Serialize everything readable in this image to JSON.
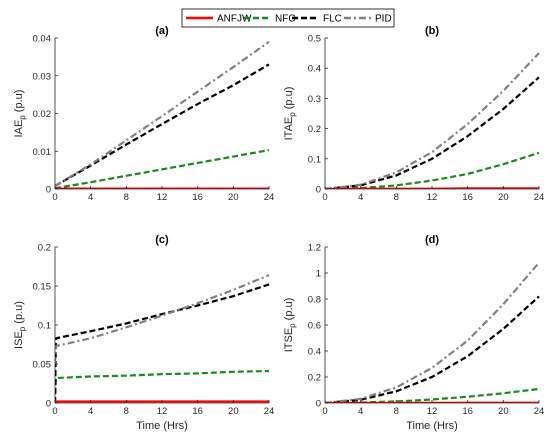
{
  "legend": {
    "items": [
      {
        "name": "ANFJW",
        "color": "#ff0000",
        "dash": "solid"
      },
      {
        "name": "NFC",
        "color": "#1a8a1a",
        "dash": "dashed"
      },
      {
        "name": "FLC",
        "color": "#000000",
        "dash": "dashed"
      },
      {
        "name": "PID",
        "color": "#808080",
        "dash": "dashdot"
      }
    ]
  },
  "chart_data": [
    {
      "type": "line",
      "title": "(a)",
      "xlabel": "",
      "ylabel": "IAE",
      "ylabel_sub": "p",
      "ylabel_suffix": " (p.u)",
      "xlim": [
        0,
        24
      ],
      "ylim": [
        0,
        0.04
      ],
      "xticks": [
        "0",
        "4",
        "8",
        "12",
        "16",
        "20",
        "24"
      ],
      "yticks": [
        {
          "v": 0,
          "t": "0"
        },
        {
          "v": 0.01,
          "t": "0.01"
        },
        {
          "v": 0.02,
          "t": "0.02"
        },
        {
          "v": 0.03,
          "t": "0.03"
        },
        {
          "v": 0.04,
          "t": "0.04"
        }
      ],
      "series": [
        {
          "name": "ANFJW",
          "x": [
            0,
            4,
            8,
            12,
            16,
            20,
            24
          ],
          "y": [
            0.0001,
            0.0001,
            0.0001,
            0.0001,
            0.0001,
            0.0001,
            0.0001
          ]
        },
        {
          "name": "NFC",
          "x": [
            0,
            4,
            8,
            12,
            16,
            20,
            24
          ],
          "y": [
            0.0002,
            0.0018,
            0.0035,
            0.0052,
            0.0069,
            0.0086,
            0.0103
          ]
        },
        {
          "name": "FLC",
          "x": [
            0,
            4,
            8,
            12,
            16,
            20,
            24
          ],
          "y": [
            0.0008,
            0.0062,
            0.0118,
            0.0172,
            0.0225,
            0.0275,
            0.033
          ]
        },
        {
          "name": "PID",
          "x": [
            0,
            4,
            8,
            12,
            16,
            20,
            24
          ],
          "y": [
            0.0008,
            0.0065,
            0.0129,
            0.0193,
            0.0258,
            0.0323,
            0.039
          ]
        }
      ]
    },
    {
      "type": "line",
      "title": "(b)",
      "xlabel": "",
      "ylabel": "ITAE",
      "ylabel_sub": "p",
      "ylabel_suffix": " (p.u)",
      "xlim": [
        0,
        24
      ],
      "ylim": [
        0,
        0.5
      ],
      "xticks": [
        "0",
        "4",
        "8",
        "12",
        "16",
        "20",
        "24"
      ],
      "yticks": [
        {
          "v": 0,
          "t": "0"
        },
        {
          "v": 0.1,
          "t": "0.1"
        },
        {
          "v": 0.2,
          "t": "0.2"
        },
        {
          "v": 0.3,
          "t": "0.3"
        },
        {
          "v": 0.4,
          "t": "0.4"
        },
        {
          "v": 0.5,
          "t": "0.5"
        }
      ],
      "series": [
        {
          "name": "ANFJW",
          "x": [
            0,
            4,
            8,
            12,
            16,
            20,
            24
          ],
          "y": [
            0,
            0.001,
            0.001,
            0.001,
            0.002,
            0.002,
            0.002
          ]
        },
        {
          "name": "NFC",
          "x": [
            0,
            4,
            8,
            12,
            16,
            20,
            24
          ],
          "y": [
            0,
            0.003,
            0.012,
            0.028,
            0.05,
            0.082,
            0.12
          ]
        },
        {
          "name": "FLC",
          "x": [
            0,
            4,
            8,
            12,
            16,
            20,
            24
          ],
          "y": [
            0,
            0.012,
            0.045,
            0.1,
            0.175,
            0.265,
            0.37
          ]
        },
        {
          "name": "PID",
          "x": [
            0,
            4,
            8,
            12,
            16,
            20,
            24
          ],
          "y": [
            0,
            0.014,
            0.055,
            0.122,
            0.215,
            0.325,
            0.45
          ]
        }
      ]
    },
    {
      "type": "line",
      "title": "(c)",
      "xlabel": "Time (Hrs)",
      "ylabel": "ISE",
      "ylabel_sub": "p",
      "ylabel_suffix": " (p.u)",
      "xlim": [
        0,
        24
      ],
      "ylim": [
        0,
        0.2
      ],
      "xticks": [
        "0",
        "4",
        "8",
        "12",
        "16",
        "20",
        "24"
      ],
      "yticks": [
        {
          "v": 0,
          "t": "0"
        },
        {
          "v": 0.05,
          "t": "0.05"
        },
        {
          "v": 0.1,
          "t": "0.1"
        },
        {
          "v": 0.15,
          "t": "0.15"
        },
        {
          "v": 0.2,
          "t": "0.2"
        }
      ],
      "series": [
        {
          "name": "ANFJW",
          "x": [
            0,
            4,
            8,
            12,
            16,
            20,
            24
          ],
          "y": [
            0.002,
            0.002,
            0.002,
            0.002,
            0.002,
            0.002,
            0.002
          ]
        },
        {
          "name": "NFC",
          "x": [
            0,
            0.1,
            4,
            8,
            12,
            16,
            20,
            24
          ],
          "y": [
            0,
            0.032,
            0.034,
            0.035,
            0.037,
            0.038,
            0.04,
            0.041
          ]
        },
        {
          "name": "FLC",
          "x": [
            0,
            0.1,
            4,
            8,
            12,
            16,
            20,
            24
          ],
          "y": [
            0,
            0.083,
            0.092,
            0.102,
            0.114,
            0.125,
            0.137,
            0.152
          ]
        },
        {
          "name": "PID",
          "x": [
            0,
            0.1,
            4,
            8,
            12,
            16,
            20,
            24
          ],
          "y": [
            0.05,
            0.073,
            0.083,
            0.097,
            0.112,
            0.128,
            0.145,
            0.164
          ]
        }
      ]
    },
    {
      "type": "line",
      "title": "(d)",
      "xlabel": "Time (Hrs)",
      "ylabel": "ITSE",
      "ylabel_sub": "p",
      "ylabel_suffix": " (p.u)",
      "xlim": [
        0,
        24
      ],
      "ylim": [
        0,
        1.2
      ],
      "xticks": [
        "0",
        "4",
        "8",
        "12",
        "16",
        "20",
        "24"
      ],
      "yticks": [
        {
          "v": 0,
          "t": "0"
        },
        {
          "v": 0.2,
          "t": "0.2"
        },
        {
          "v": 0.4,
          "t": "0.4"
        },
        {
          "v": 0.6,
          "t": "0.6"
        },
        {
          "v": 0.8,
          "t": "0.8"
        },
        {
          "v": 1,
          "t": "1"
        },
        {
          "v": 1.2,
          "t": "1.2"
        }
      ],
      "series": [
        {
          "name": "ANFJW",
          "x": [
            0,
            4,
            8,
            12,
            16,
            20,
            24
          ],
          "y": [
            0,
            0.001,
            0.001,
            0.001,
            0.002,
            0.002,
            0.002
          ]
        },
        {
          "name": "NFC",
          "x": [
            0,
            4,
            8,
            12,
            16,
            20,
            24
          ],
          "y": [
            0,
            0.004,
            0.012,
            0.027,
            0.048,
            0.075,
            0.108
          ]
        },
        {
          "name": "FLC",
          "x": [
            0,
            4,
            8,
            12,
            16,
            20,
            24
          ],
          "y": [
            0,
            0.025,
            0.09,
            0.2,
            0.36,
            0.57,
            0.82
          ]
        },
        {
          "name": "PID",
          "x": [
            0,
            4,
            8,
            12,
            16,
            20,
            24
          ],
          "y": [
            0,
            0.032,
            0.12,
            0.27,
            0.48,
            0.76,
            1.08
          ]
        }
      ]
    }
  ]
}
